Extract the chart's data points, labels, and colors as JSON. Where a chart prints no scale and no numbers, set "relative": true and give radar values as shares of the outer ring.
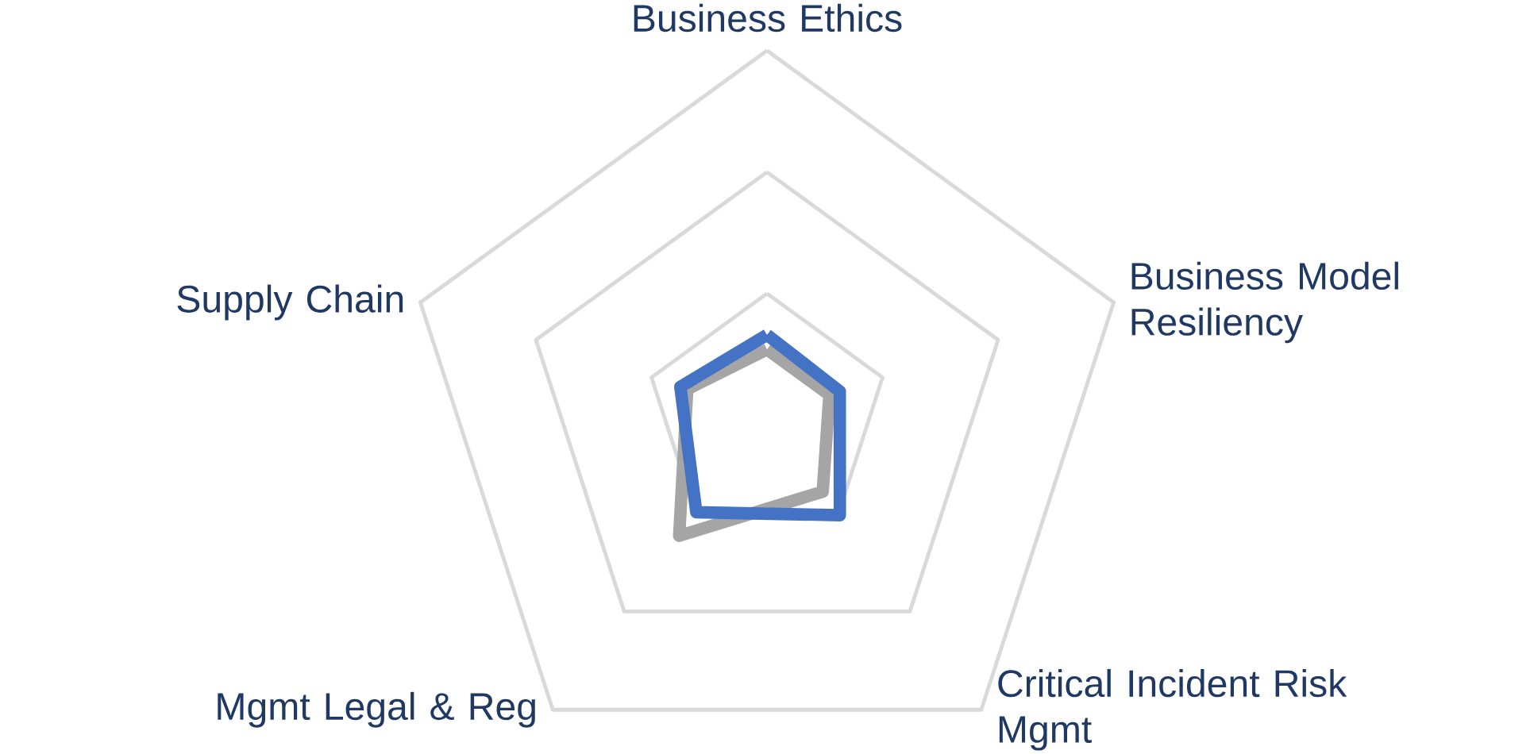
{
  "chart_data": {
    "type": "radar",
    "relative": true,
    "grid": true,
    "categories": [
      "Business Ethics",
      "Business Model Resiliency",
      "Critical Incident Risk Mgmt",
      "Mgmt Legal & Reg",
      "Supply Chain"
    ],
    "series": [
      {
        "color": "#a5a5a5",
        "values": [
          0.18,
          0.18,
          0.26,
          0.41,
          0.23
        ]
      },
      {
        "color": "#4472c4",
        "values": [
          0.22,
          0.21,
          0.34,
          0.33,
          0.25
        ]
      }
    ]
  }
}
